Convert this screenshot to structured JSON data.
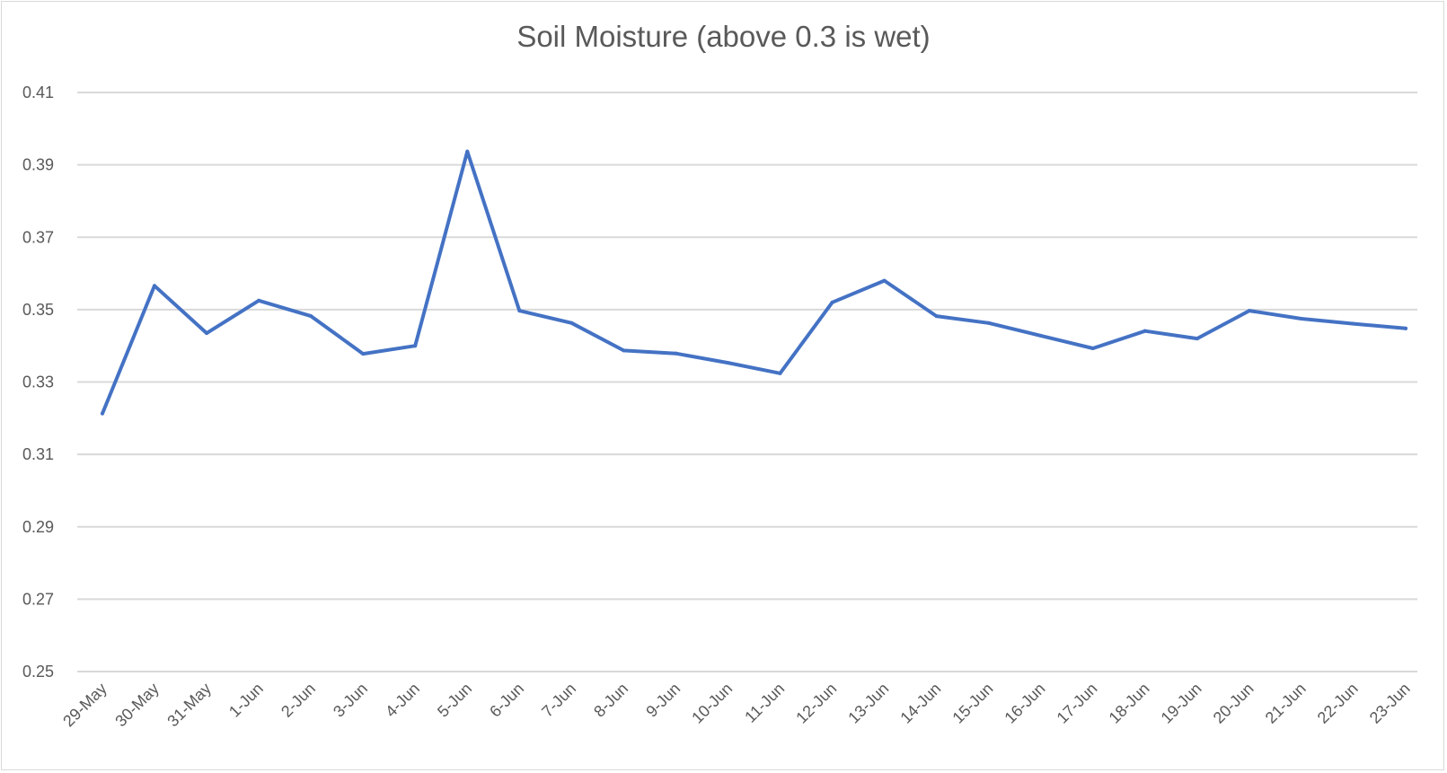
{
  "chart_data": {
    "type": "line",
    "title": "Soil Moisture (above 0.3 is wet)",
    "xlabel": "",
    "ylabel": "",
    "ylim": [
      0.25,
      0.41
    ],
    "yticks": [
      "0.25",
      "0.27",
      "0.29",
      "0.31",
      "0.33",
      "0.35",
      "0.37",
      "0.39",
      "0.41"
    ],
    "grid": true,
    "legend": "none",
    "categories": [
      "29-May",
      "30-May",
      "31-May",
      "1-Jun",
      "2-Jun",
      "3-Jun",
      "4-Jun",
      "5-Jun",
      "6-Jun",
      "7-Jun",
      "8-Jun",
      "9-Jun",
      "10-Jun",
      "11-Jun",
      "12-Jun",
      "13-Jun",
      "14-Jun",
      "15-Jun",
      "16-Jun",
      "17-Jun",
      "18-Jun",
      "19-Jun",
      "20-Jun",
      "21-Jun",
      "22-Jun",
      "23-Jun"
    ],
    "series": [
      {
        "values": [
          0.3213,
          0.3566,
          0.3435,
          0.3525,
          0.3482,
          0.3378,
          0.34,
          0.3937,
          0.3497,
          0.3463,
          0.3387,
          0.3379,
          0.3353,
          0.3324,
          0.352,
          0.358,
          0.3482,
          0.3463,
          0.3428,
          0.3393,
          0.3441,
          0.342,
          0.3497,
          0.3475,
          0.3461,
          0.3448
        ],
        "color": "#4472c4"
      }
    ],
    "gridColor": "#d9d9d9",
    "textColor": "#595959"
  }
}
